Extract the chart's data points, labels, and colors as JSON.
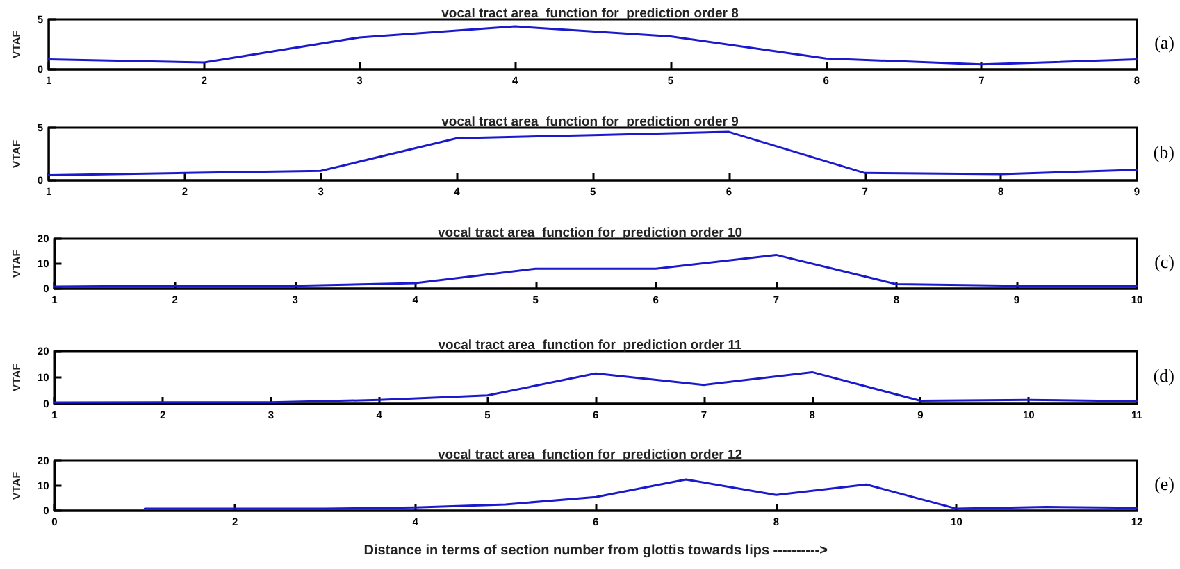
{
  "chart_data": [
    {
      "type": "line",
      "title": "vocal tract area  function for  prediction order 8",
      "ylabel": "VTAF",
      "x": [
        1,
        2,
        3,
        4,
        5,
        6,
        7,
        8
      ],
      "series": [
        {
          "color": "#1a1acc",
          "values": [
            1.0,
            0.7,
            3.2,
            4.3,
            3.3,
            1.1,
            0.5,
            1.0
          ]
        }
      ],
      "xlim": [
        1,
        8
      ],
      "xticks": [
        1,
        2,
        3,
        4,
        5,
        6,
        7,
        8
      ],
      "ylim": [
        0,
        5
      ],
      "yticks": [
        0,
        5
      ],
      "annotations": [
        "(a)"
      ],
      "marker": "none",
      "line_style": "solid"
    },
    {
      "type": "line",
      "title": "vocal tract area  function for  prediction order 9",
      "ylabel": "VTAF",
      "x": [
        1,
        2,
        3,
        4,
        5,
        6,
        7,
        8,
        9
      ],
      "series": [
        {
          "color": "#1a1acc",
          "values": [
            0.5,
            0.7,
            0.9,
            4.0,
            4.3,
            4.6,
            0.7,
            0.6,
            1.0
          ]
        }
      ],
      "xlim": [
        1,
        9
      ],
      "xticks": [
        1,
        2,
        3,
        4,
        5,
        6,
        7,
        8,
        9
      ],
      "ylim": [
        0,
        5
      ],
      "yticks": [
        0,
        5
      ],
      "annotations": [
        "(b)"
      ],
      "marker": "none",
      "line_style": "solid"
    },
    {
      "type": "line",
      "title": "vocal tract area  function for  prediction order 10",
      "ylabel": "VTAF",
      "x": [
        1,
        2,
        3,
        4,
        5,
        6,
        7,
        8,
        9,
        10
      ],
      "series": [
        {
          "color": "#1a1acc",
          "values": [
            0.8,
            1.2,
            1.2,
            2.2,
            8,
            8,
            13.5,
            1.8,
            1.2,
            1.2
          ]
        }
      ],
      "xlim": [
        1,
        10
      ],
      "xticks": [
        1,
        2,
        3,
        4,
        5,
        6,
        7,
        8,
        9,
        10
      ],
      "ylim": [
        0,
        20
      ],
      "yticks": [
        0,
        10,
        20
      ],
      "annotations": [
        "(c)"
      ],
      "marker": "none",
      "line_style": "solid"
    },
    {
      "type": "line",
      "title": "vocal tract area  function for  prediction order 11",
      "ylabel": "VTAF",
      "x": [
        1,
        2,
        3,
        4,
        5,
        6,
        7,
        8,
        9,
        10,
        11
      ],
      "series": [
        {
          "color": "#1a1acc",
          "values": [
            0.5,
            0.6,
            0.6,
            1.5,
            3.2,
            11.5,
            7.2,
            12,
            1.2,
            1.5,
            1.0
          ]
        }
      ],
      "xlim": [
        1,
        11
      ],
      "xticks": [
        1,
        2,
        3,
        4,
        5,
        6,
        7,
        8,
        9,
        10,
        11
      ],
      "ylim": [
        0,
        20
      ],
      "yticks": [
        0,
        10,
        20
      ],
      "annotations": [
        "(d)"
      ],
      "marker": "none",
      "line_style": "solid"
    },
    {
      "type": "line",
      "title": "vocal tract area  function for  prediction order 12",
      "ylabel": "VTAF",
      "xlabel": "Distance in terms of section number from glottis towards lips ---------->",
      "x": [
        1,
        2,
        3,
        4,
        5,
        6,
        7,
        8,
        9,
        10,
        11,
        12
      ],
      "series": [
        {
          "color": "#1a1acc",
          "values": [
            0.8,
            0.8,
            0.8,
            1.3,
            2.5,
            5.5,
            12.5,
            6.3,
            10.5,
            0.8,
            1.5,
            1.2
          ]
        }
      ],
      "xlim": [
        0,
        12
      ],
      "xticks": [
        0,
        2,
        4,
        6,
        8,
        10,
        12
      ],
      "ylim": [
        0,
        20
      ],
      "yticks": [
        0,
        10,
        20
      ],
      "annotations": [
        "(e)"
      ],
      "marker": "none",
      "line_style": "solid"
    }
  ]
}
